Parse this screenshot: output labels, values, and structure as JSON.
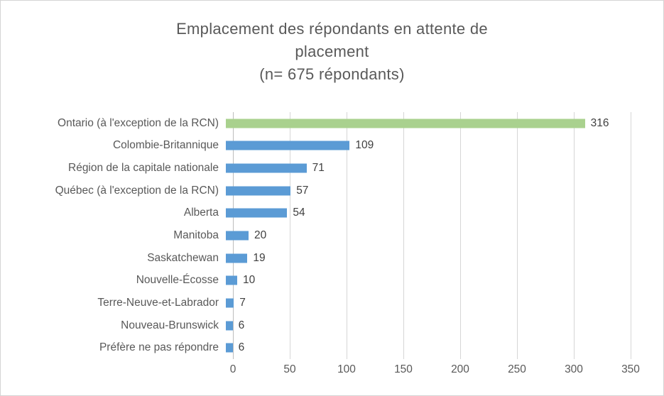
{
  "chart_data": {
    "type": "bar",
    "orientation": "horizontal",
    "title": "Emplacement des répondants en attente de placement",
    "title_lines": [
      "Emplacement des répondants en attente de",
      "placement"
    ],
    "subtitle": "(n= 675 répondants)",
    "categories": [
      "Ontario (à l'exception de la RCN)",
      "Colombie-Britannique",
      "Région de la capitale nationale",
      "Québec (à l'exception de la RCN)",
      "Alberta",
      "Manitoba",
      "Saskatchewan",
      "Nouvelle-Écosse",
      "Terre-Neuve-et-Labrador",
      "Nouveau-Brunswick",
      "Préfère ne pas répondre"
    ],
    "values": [
      316,
      109,
      71,
      57,
      54,
      20,
      19,
      10,
      7,
      6,
      6
    ],
    "xlim": [
      0,
      350
    ],
    "xticks": [
      0,
      50,
      100,
      150,
      200,
      250,
      300,
      350
    ],
    "grid": true,
    "legend_position": "none",
    "colors": {
      "bar_default": "#5b9bd5",
      "bar_highlight": "#a9d18e",
      "highlight_index": 0,
      "gridline": "#d6d6d6",
      "axis_line": "#bdbdbd",
      "title_text": "#595959",
      "label_text": "#595959",
      "value_text": "#404040"
    }
  }
}
